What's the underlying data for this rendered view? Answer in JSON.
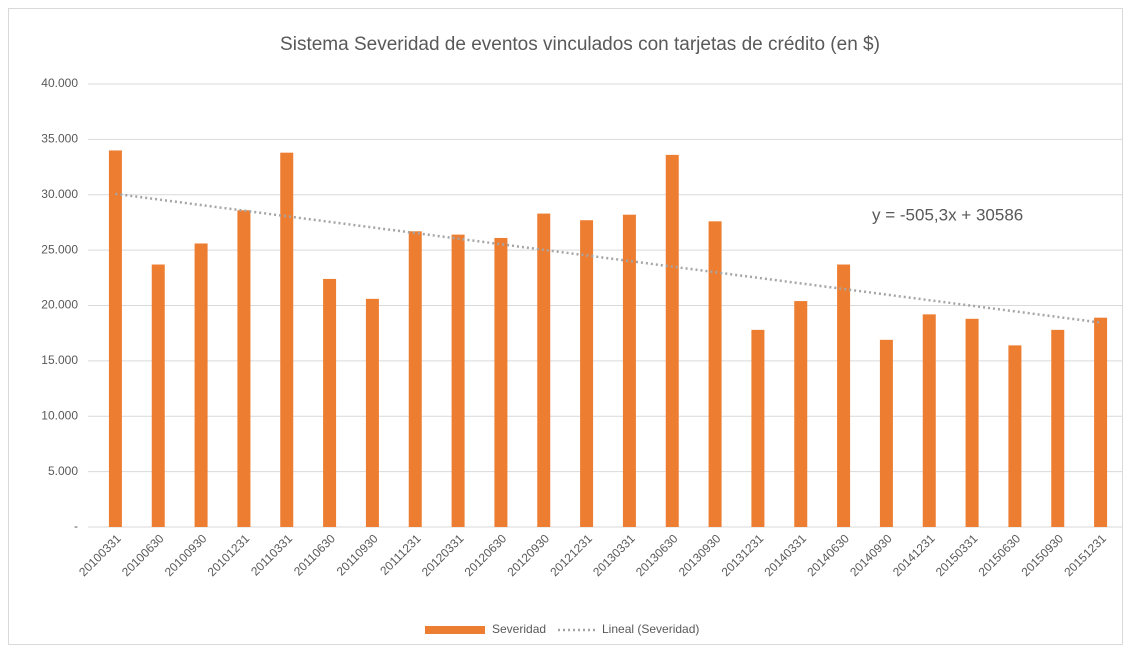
{
  "chart_data": {
    "type": "bar",
    "title": "Sistema  Severidad de eventos vinculados con tarjetas de crédito (en $)",
    "categories": [
      "20100331",
      "20100630",
      "20100930",
      "20101231",
      "20110331",
      "20110630",
      "20110930",
      "20111231",
      "20120331",
      "20120630",
      "20120930",
      "20121231",
      "20130331",
      "20130630",
      "20130930",
      "20131231",
      "20140331",
      "20140630",
      "20140930",
      "20141231",
      "20150331",
      "20150630",
      "20150930",
      "20151231"
    ],
    "series": [
      {
        "name": "Severidad",
        "color": "#ed7d31",
        "values": [
          34000,
          23700,
          25600,
          28600,
          33800,
          22400,
          20600,
          26700,
          26400,
          26100,
          28300,
          27700,
          28200,
          33600,
          27600,
          17800,
          20400,
          23700,
          16900,
          19200,
          18800,
          16400,
          17800,
          18900
        ]
      }
    ],
    "trendline": {
      "name": "Lineal (Severidad)",
      "color": "#a5a5a5",
      "slope": -505.3,
      "intercept": 30586,
      "label": "y = -505,3x + 30586"
    },
    "ylim": [
      0,
      40000
    ],
    "yticks": [
      {
        "value": 0,
        "label": "-"
      },
      {
        "value": 5000,
        "label": "5.000"
      },
      {
        "value": 10000,
        "label": "10.000"
      },
      {
        "value": 15000,
        "label": "15.000"
      },
      {
        "value": 20000,
        "label": "20.000"
      },
      {
        "value": 25000,
        "label": "25.000"
      },
      {
        "value": 30000,
        "label": "30.000"
      },
      {
        "value": 35000,
        "label": "35.000"
      },
      {
        "value": 40000,
        "label": "40.000"
      }
    ],
    "grid": true,
    "legend": "bottom"
  }
}
